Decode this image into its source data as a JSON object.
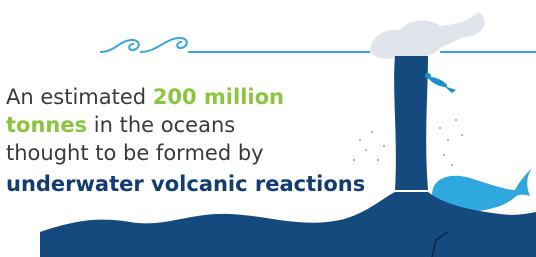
{
  "text": {
    "line1_prefix": "An estimated",
    "line1_highlight": "200 million",
    "line2_highlight": "tonnes",
    "line2_suffix": "in the oceans",
    "line3": "thought to be formed by",
    "line4": "underwater volcanic reactions"
  }
}
